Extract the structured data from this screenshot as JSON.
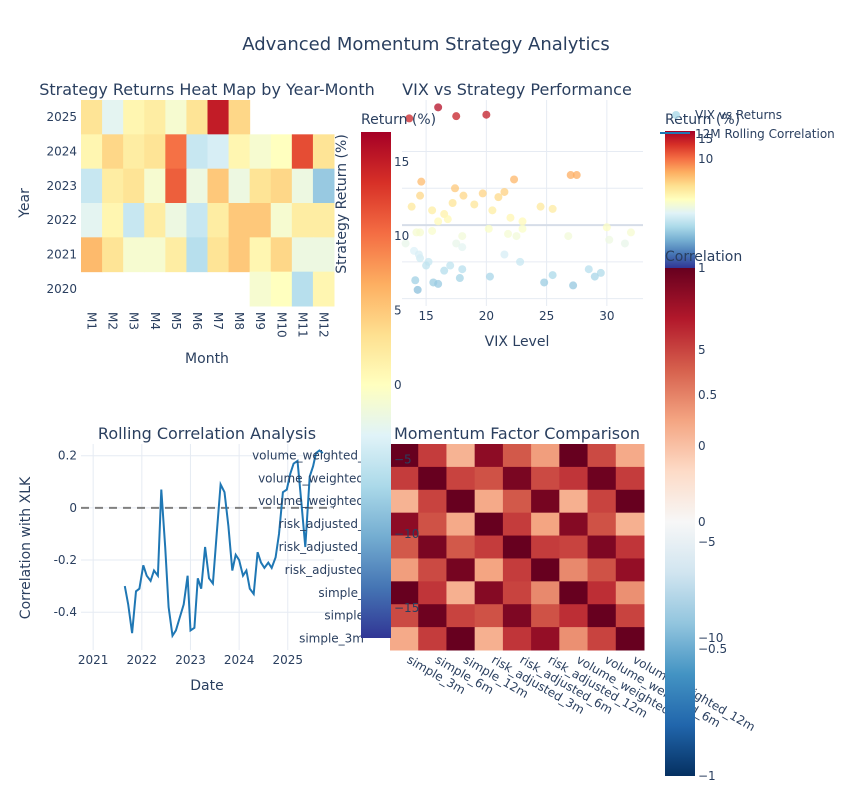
{
  "page": {
    "title": "Advanced Momentum Strategy Analytics"
  },
  "colors": {
    "text_dark": "#2a3f5f",
    "grid": "#e6ebf3",
    "line_blue": "#1f77b4",
    "dashed_gray": "#808080",
    "rdylbu": [
      "#313695",
      "#4575b4",
      "#74add1",
      "#abd9e9",
      "#e0f3f8",
      "#ffffbf",
      "#fee090",
      "#fdae61",
      "#f46d43",
      "#d73027",
      "#a50026"
    ],
    "rdbu": [
      "#053061",
      "#2166ac",
      "#4393c3",
      "#92c5de",
      "#d1e5f0",
      "#f7f7f7",
      "#fddbc7",
      "#f4a582",
      "#d6604d",
      "#b2182b",
      "#67001f"
    ]
  },
  "chart_data": [
    {
      "type": "heatmap",
      "title": "Strategy Returns Heat Map by Year-Month",
      "xlabel": "Month",
      "ylabel": "Year",
      "x_categories": [
        "M1",
        "M2",
        "M3",
        "M4",
        "M5",
        "M6",
        "M7",
        "M8",
        "M9",
        "M10",
        "M11",
        "M12"
      ],
      "y_categories": [
        "2025",
        "2024",
        "2023",
        "2022",
        "2021",
        "2020"
      ],
      "values": [
        [
          3,
          -3,
          1,
          2,
          -1,
          3,
          15,
          4,
          null,
          null,
          null,
          null
        ],
        [
          1,
          4,
          2,
          3,
          10,
          -5,
          -4,
          1,
          -1,
          0,
          12,
          3
        ],
        [
          -5,
          2,
          3,
          -1,
          11,
          -2,
          5,
          -2,
          3,
          4,
          -2,
          -8
        ],
        [
          -3,
          1,
          -5,
          2,
          -2,
          -5,
          2,
          5,
          5,
          -1,
          2,
          2
        ],
        [
          6,
          3,
          -1,
          -1,
          2,
          -6,
          3,
          5,
          1,
          4,
          -2,
          -2
        ],
        [
          null,
          null,
          null,
          null,
          null,
          null,
          null,
          null,
          -1,
          0,
          -6,
          1
        ]
      ],
      "colorbar": {
        "title": "Return (%)",
        "ticks": [
          15,
          10,
          5,
          0,
          -5,
          -10,
          -15
        ],
        "range": [
          -17,
          17
        ]
      }
    },
    {
      "type": "scatter",
      "title": "VIX vs Strategy Performance",
      "xlabel": "VIX Level",
      "ylabel": "Strategy Return (%)",
      "xlim": [
        13,
        33
      ],
      "ylim": [
        -11,
        17
      ],
      "xticks": [
        15,
        20,
        25,
        30
      ],
      "yticks": [
        10,
        5,
        0,
        -5,
        -10
      ],
      "legend": [
        "VIX vs Returns",
        "12M Rolling Correlation"
      ],
      "colorbar": {
        "title": "Return (%)",
        "ticks": [
          15,
          10
        ],
        "range": [
          -17,
          17
        ]
      },
      "points": [
        [
          13.6,
          14.5
        ],
        [
          16.0,
          16.0
        ],
        [
          17.5,
          14.8
        ],
        [
          20.0,
          15.0
        ],
        [
          13.8,
          2.5
        ],
        [
          14.6,
          5.9
        ],
        [
          14.5,
          4.0
        ],
        [
          17.4,
          5.0
        ],
        [
          19.7,
          4.3
        ],
        [
          21.5,
          4.5
        ],
        [
          22.3,
          6.2
        ],
        [
          27.0,
          6.8
        ],
        [
          15.5,
          2.0
        ],
        [
          16.0,
          0.5
        ],
        [
          16.5,
          1.5
        ],
        [
          17.2,
          3.0
        ],
        [
          18.1,
          4.0
        ],
        [
          19.0,
          2.8
        ],
        [
          20.5,
          2.0
        ],
        [
          21.0,
          3.8
        ],
        [
          22.0,
          1.0
        ],
        [
          23.0,
          0.5
        ],
        [
          24.5,
          2.5
        ],
        [
          25.5,
          2.2
        ],
        [
          27.5,
          6.8
        ],
        [
          14.5,
          -1.0
        ],
        [
          15.5,
          -0.8
        ],
        [
          16.8,
          0.8
        ],
        [
          18.0,
          -1.5
        ],
        [
          20.2,
          -0.5
        ],
        [
          21.8,
          -1.2
        ],
        [
          22.5,
          -1.5
        ],
        [
          23.0,
          -0.5
        ],
        [
          26.8,
          -1.5
        ],
        [
          30.0,
          -0.3
        ],
        [
          32.0,
          -1.0
        ],
        [
          14.2,
          -1.0
        ],
        [
          14.5,
          -4.5
        ],
        [
          17.5,
          -2.5
        ],
        [
          18.0,
          -3.0
        ],
        [
          14.0,
          -3.5
        ],
        [
          16.5,
          -6.2
        ],
        [
          17.0,
          -5.5
        ],
        [
          18.0,
          -6.0
        ],
        [
          21.5,
          -4.0
        ],
        [
          22.8,
          -5.0
        ],
        [
          25.5,
          -6.8
        ],
        [
          28.5,
          -6.0
        ],
        [
          29.5,
          -6.5
        ],
        [
          30.2,
          -2.0
        ],
        [
          31.5,
          -2.5
        ],
        [
          13.3,
          -2.5
        ],
        [
          14.4,
          -4.0
        ],
        [
          15.2,
          -5.0
        ],
        [
          15.0,
          -5.5
        ],
        [
          14.3,
          -8.8
        ],
        [
          14.1,
          -7.5
        ],
        [
          15.6,
          -7.8
        ],
        [
          17.8,
          -7.2
        ],
        [
          20.3,
          -7.0
        ],
        [
          16.0,
          -8.0
        ],
        [
          24.8,
          -7.8
        ],
        [
          27.2,
          -8.2
        ],
        [
          29.0,
          -7.0
        ]
      ]
    },
    {
      "type": "line",
      "title": "Rolling Correlation Analysis",
      "xlabel": "Date",
      "ylabel": "Correlation with XLK",
      "xticks": [
        "2021",
        "2022",
        "2023",
        "2024",
        "2025"
      ],
      "yticks": [
        0.2,
        0,
        -0.2,
        -0.4
      ],
      "xlim": [
        2020.75,
        2025.95
      ],
      "ylim": [
        -0.545,
        0.245
      ],
      "series": [
        {
          "x": [
            2021.65,
            2021.72,
            2021.8,
            2021.88,
            2021.95,
            2022.03,
            2022.1,
            2022.18,
            2022.25,
            2022.33,
            2022.4,
            2022.48,
            2022.55,
            2022.63,
            2022.7,
            2022.78,
            2022.86,
            2022.94,
            2023.0,
            2023.08,
            2023.15,
            2023.22,
            2023.3,
            2023.38,
            2023.46,
            2023.54,
            2023.62,
            2023.7,
            2023.78,
            2023.86,
            2023.93,
            2024.0,
            2024.08,
            2024.15,
            2024.22,
            2024.3,
            2024.38,
            2024.45,
            2024.52,
            2024.6,
            2024.67,
            2024.75,
            2024.82,
            2024.9,
            2024.98,
            2025.05,
            2025.12,
            2025.2,
            2025.28,
            2025.36,
            2025.45,
            2025.52,
            2025.58,
            2025.65,
            2025.72
          ],
          "y": [
            -0.3,
            -0.37,
            -0.48,
            -0.32,
            -0.31,
            -0.22,
            -0.26,
            -0.28,
            -0.24,
            -0.26,
            0.07,
            -0.15,
            -0.38,
            -0.49,
            -0.47,
            -0.42,
            -0.37,
            -0.26,
            -0.47,
            -0.46,
            -0.27,
            -0.31,
            -0.15,
            -0.27,
            -0.29,
            -0.1,
            0.09,
            0.06,
            -0.07,
            -0.24,
            -0.18,
            -0.2,
            -0.26,
            -0.24,
            -0.31,
            -0.33,
            -0.17,
            -0.21,
            -0.23,
            -0.21,
            -0.23,
            -0.19,
            -0.1,
            0.06,
            0.07,
            0.13,
            0.17,
            0.18,
            0.02,
            -0.15,
            0.12,
            0.16,
            0.21,
            0.22,
            0.21
          ]
        },
        {
          "name": "",
          "x": [
            2020.75,
            2025.95
          ],
          "y": [
            0,
            0
          ],
          "style": "dashed"
        }
      ]
    },
    {
      "type": "heatmap",
      "title": "Momentum Factor Comparison",
      "labels": [
        "simple_3m",
        "simple_6m",
        "simple_12m",
        "risk_adjusted_3m",
        "risk_adjusted_6m",
        "risk_adjusted_12m",
        "volume_weighted_3m",
        "volume_weighted_6m",
        "volume_weighted_12m"
      ],
      "y_labels_visible": [
        "volume_weighted_",
        "volume_weighted",
        "volume_weighted",
        "risk_adjusted_",
        "risk_adjusted_",
        "risk_adjusted",
        "simple_",
        "simple",
        "simple_3m"
      ],
      "values": [
        [
          1.0,
          0.7,
          0.35,
          0.9,
          0.62,
          0.42,
          1.0,
          0.66,
          0.38
        ],
        [
          0.7,
          1.0,
          0.68,
          0.64,
          0.95,
          0.66,
          0.72,
          0.98,
          0.7
        ],
        [
          0.35,
          0.68,
          1.0,
          0.38,
          0.62,
          0.96,
          0.36,
          0.68,
          1.0
        ],
        [
          0.9,
          0.64,
          0.38,
          1.0,
          0.7,
          0.4,
          0.92,
          0.64,
          0.36
        ],
        [
          0.62,
          0.95,
          0.62,
          0.7,
          1.0,
          0.7,
          0.68,
          0.94,
          0.72
        ],
        [
          0.42,
          0.66,
          0.96,
          0.4,
          0.7,
          1.0,
          0.48,
          0.64,
          0.88
        ],
        [
          1.0,
          0.72,
          0.36,
          0.92,
          0.68,
          0.48,
          1.0,
          0.74,
          0.46
        ],
        [
          0.66,
          0.98,
          0.68,
          0.64,
          0.94,
          0.64,
          0.74,
          1.0,
          0.68
        ],
        [
          0.38,
          0.7,
          1.0,
          0.36,
          0.72,
          0.88,
          0.46,
          0.68,
          1.0
        ]
      ],
      "colorbar": {
        "title": "Correlation",
        "ticks": [
          "1",
          "0.5",
          "0",
          "−0.5",
          "−1"
        ],
        "range": [
          -1,
          1
        ]
      },
      "overlay_colorbar": {
        "ticks": [
          "5",
          "0",
          "−5",
          "−10"
        ]
      }
    }
  ]
}
